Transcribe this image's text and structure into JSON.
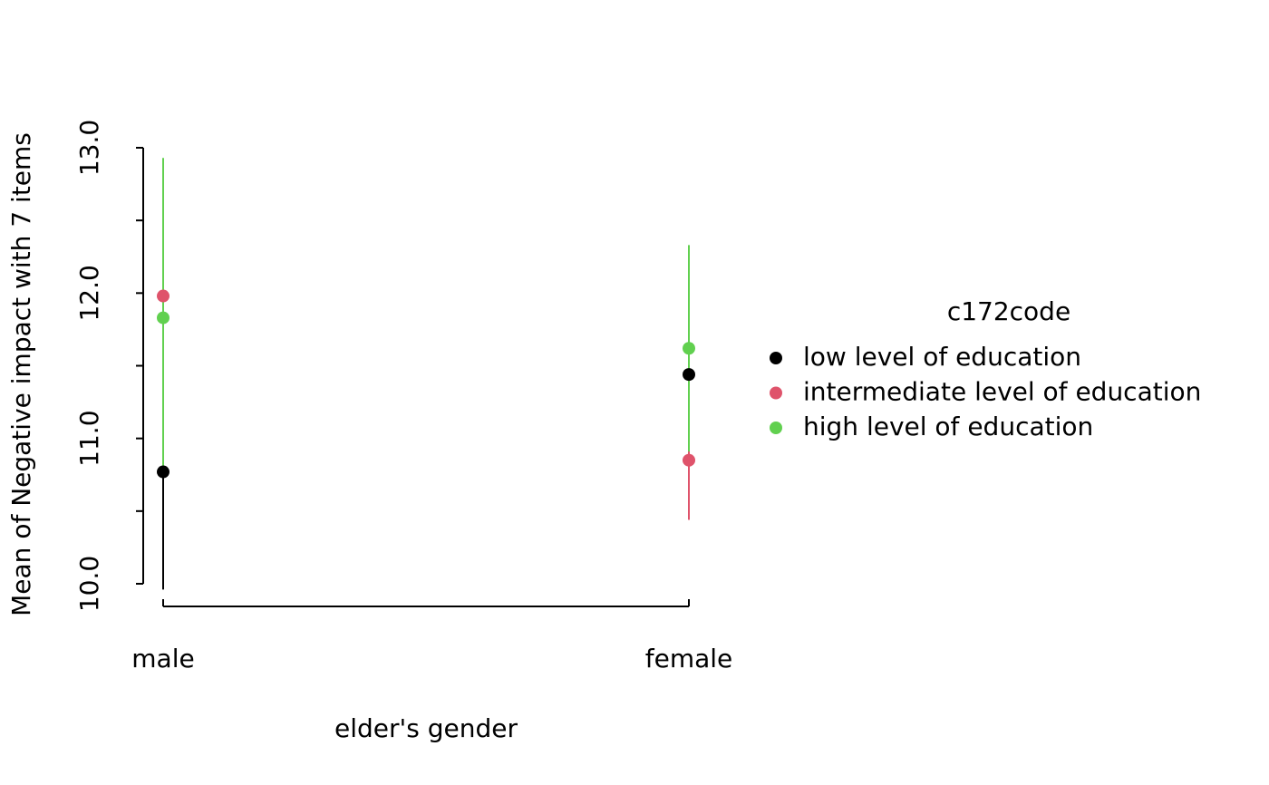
{
  "chart_data": {
    "type": "errorbar",
    "x_label": "elder's gender",
    "y_label": "Mean of Negative impact with 7 items",
    "categories": [
      "male",
      "female"
    ],
    "ylim": [
      10,
      13
    ],
    "yticks": [
      {
        "value": 10,
        "label": "10.0"
      },
      {
        "value": 11,
        "label": "11.0"
      },
      {
        "value": 12,
        "label": "12.0"
      },
      {
        "value": 13,
        "label": "13.0"
      }
    ],
    "yminorticks": [
      10.5,
      11.5,
      12.5
    ],
    "legend_title": "c172code",
    "legend_position": "right",
    "series": [
      {
        "name": "low level of education",
        "color": "#000000",
        "values": [
          10.77,
          11.44
        ],
        "lower": [
          9.96,
          10.71
        ],
        "upper": [
          11.58,
          12.17
        ]
      },
      {
        "name": "intermediate level of education",
        "color": "#DF536B",
        "values": [
          11.98,
          10.85
        ],
        "lower": [
          11.4,
          10.44
        ],
        "upper": [
          12.56,
          11.26
        ]
      },
      {
        "name": "high level of education",
        "color": "#61D04F",
        "values": [
          11.83,
          11.62
        ],
        "lower": [
          10.73,
          10.91
        ],
        "upper": [
          12.93,
          12.33
        ]
      }
    ]
  }
}
